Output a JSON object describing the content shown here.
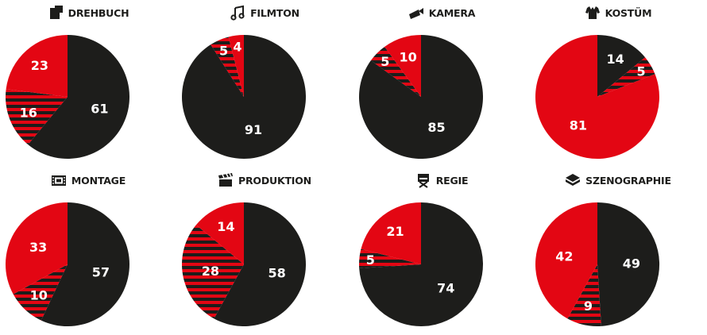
{
  "colors": {
    "black": "#1d1d1b",
    "red": "#e30613"
  },
  "chart_data": [
    {
      "type": "pie",
      "title": "DREHBUCH",
      "icon": "script-icon",
      "values": [
        61,
        16,
        23
      ],
      "segments": [
        "black",
        "striped",
        "red"
      ]
    },
    {
      "type": "pie",
      "title": "FILMTON",
      "icon": "music-note-icon",
      "values": [
        91,
        5,
        4
      ],
      "segments": [
        "black",
        "striped",
        "red"
      ]
    },
    {
      "type": "pie",
      "title": "KAMERA",
      "icon": "camera-icon",
      "values": [
        85,
        5,
        10
      ],
      "segments": [
        "black",
        "striped",
        "red"
      ]
    },
    {
      "type": "pie",
      "title": "KOSTÜM",
      "icon": "costume-icon",
      "values": [
        14,
        5,
        81
      ],
      "segments": [
        "black",
        "striped",
        "red"
      ]
    },
    {
      "type": "pie",
      "title": "MONTAGE",
      "icon": "film-strip-icon",
      "values": [
        57,
        10,
        33
      ],
      "segments": [
        "black",
        "striped",
        "red"
      ]
    },
    {
      "type": "pie",
      "title": "PRODUKTION",
      "icon": "clapperboard-icon",
      "values": [
        58,
        28,
        14
      ],
      "segments": [
        "black",
        "striped",
        "red"
      ]
    },
    {
      "type": "pie",
      "title": "REGIE",
      "icon": "director-chair-icon",
      "values": [
        74,
        5,
        21
      ],
      "segments": [
        "black",
        "striped",
        "red"
      ]
    },
    {
      "type": "pie",
      "title": "SZENOGRAPHIE",
      "icon": "set-design-icon",
      "values": [
        49,
        9,
        42
      ],
      "segments": [
        "black",
        "striped",
        "red"
      ]
    }
  ]
}
